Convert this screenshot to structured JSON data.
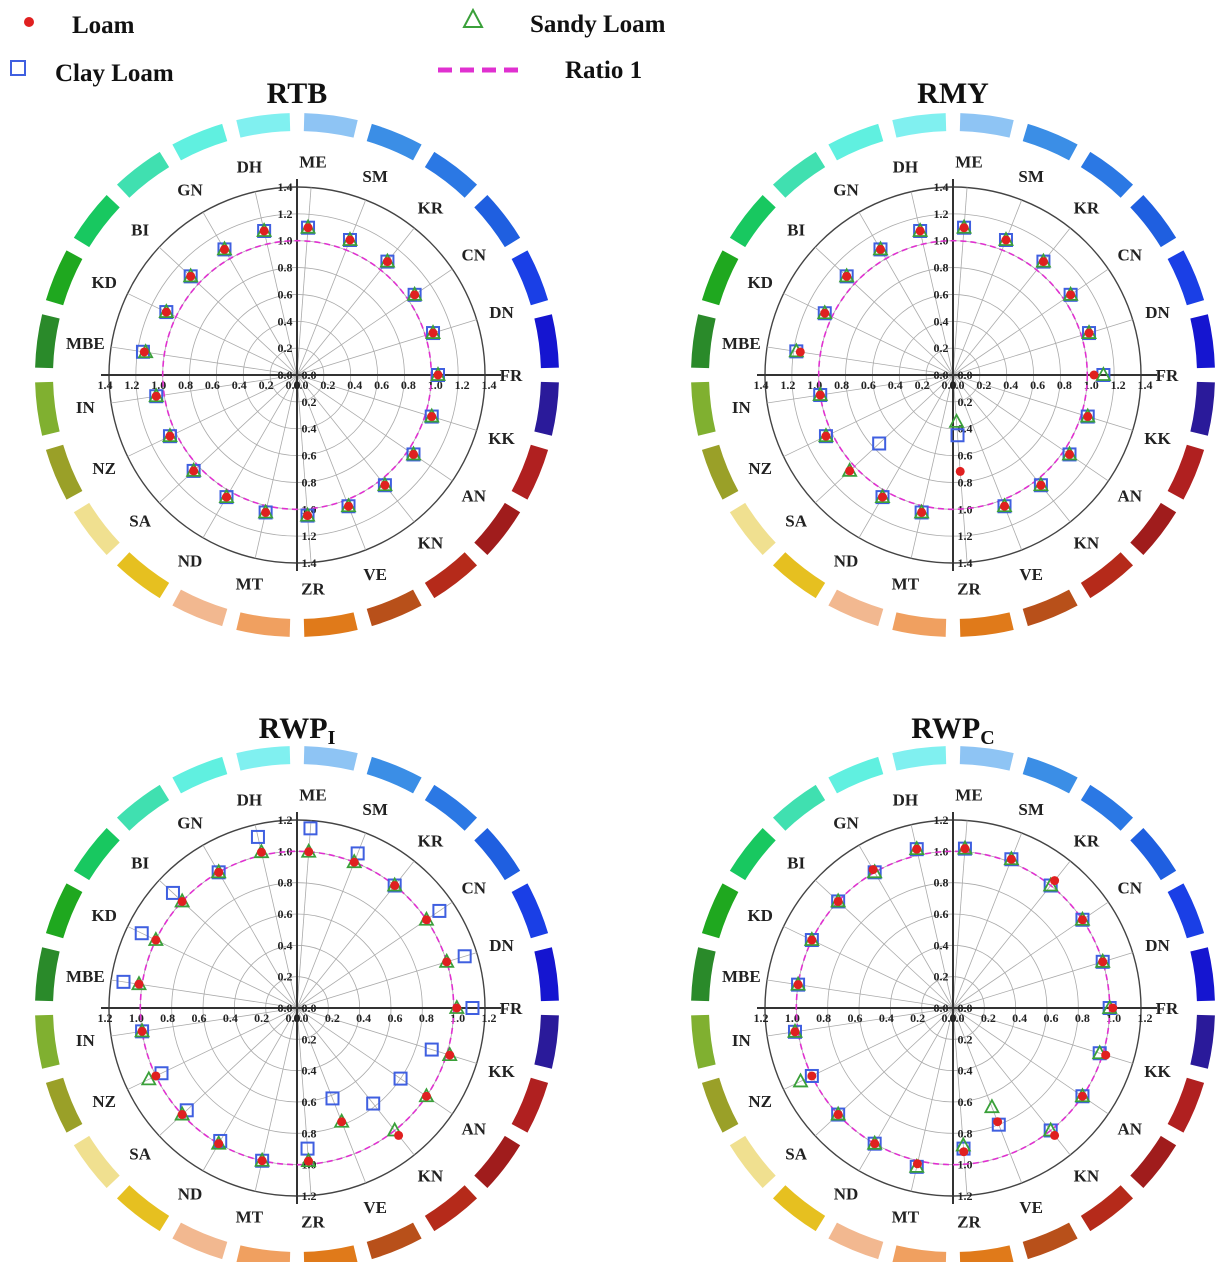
{
  "legend": {
    "loam": "Loam",
    "sandy_loam": "Sandy Loam",
    "clay_loam": "Clay Loam",
    "ratio": "Ratio 1"
  },
  "colors": {
    "loam": "#e02020",
    "sandy_loam": "#3aa03a",
    "clay_loam": "#3f5fe0",
    "ratio": "#e030d0"
  },
  "chart_data": [
    {
      "type": "scatter",
      "subtype": "polar",
      "title": "RTB",
      "rmax": 1.4,
      "ticks": [
        "0.0",
        "0.2",
        "0.4",
        "0.6",
        "0.8",
        "1.0",
        "1.2",
        "1.4"
      ],
      "categories": [
        "FR",
        "KK",
        "AN",
        "KN",
        "VE",
        "ZR",
        "MT",
        "ND",
        "SA",
        "NZ",
        "IN",
        "MBE",
        "KD",
        "BI",
        "GN",
        "DH",
        "ME",
        "SM",
        "KR",
        "CN",
        "DN"
      ],
      "series": [
        {
          "name": "Loam",
          "values": [
            1.05,
            1.05,
            1.05,
            1.05,
            1.05,
            1.05,
            1.05,
            1.05,
            1.05,
            1.05,
            1.06,
            1.15,
            1.08,
            1.08,
            1.08,
            1.1,
            1.1,
            1.08,
            1.08,
            1.06,
            1.06
          ]
        },
        {
          "name": "Sandy Loam",
          "values": [
            1.05,
            1.05,
            1.05,
            1.05,
            1.05,
            1.05,
            1.05,
            1.05,
            1.05,
            1.05,
            1.06,
            1.14,
            1.08,
            1.08,
            1.08,
            1.1,
            1.1,
            1.08,
            1.08,
            1.06,
            1.06
          ]
        },
        {
          "name": "Clay Loam",
          "values": [
            1.05,
            1.05,
            1.05,
            1.05,
            1.05,
            1.05,
            1.05,
            1.05,
            1.05,
            1.05,
            1.06,
            1.16,
            1.08,
            1.08,
            1.08,
            1.1,
            1.1,
            1.08,
            1.08,
            1.06,
            1.06
          ]
        }
      ]
    },
    {
      "type": "scatter",
      "subtype": "polar",
      "title": "RMY",
      "rmax": 1.4,
      "ticks": [
        "0.0",
        "0.2",
        "0.4",
        "0.6",
        "0.8",
        "1.0",
        "1.2",
        "1.4"
      ],
      "categories": [
        "FR",
        "KK",
        "AN",
        "KN",
        "VE",
        "ZR",
        "MT",
        "ND",
        "SA",
        "NZ",
        "IN",
        "MBE",
        "KD",
        "BI",
        "GN",
        "DH",
        "ME",
        "SM",
        "KR",
        "CN",
        "DN"
      ],
      "series": [
        {
          "name": "Loam",
          "values": [
            1.05,
            1.05,
            1.05,
            1.05,
            1.05,
            0.72,
            1.05,
            1.05,
            1.05,
            1.05,
            1.0,
            1.15,
            1.06,
            1.08,
            1.08,
            1.1,
            1.1,
            1.08,
            1.08,
            1.06,
            1.06
          ]
        },
        {
          "name": "Sandy Loam",
          "values": [
            1.12,
            1.05,
            1.05,
            1.05,
            1.05,
            0.35,
            1.05,
            1.05,
            1.05,
            1.05,
            1.0,
            1.18,
            1.06,
            1.08,
            1.08,
            1.1,
            1.1,
            1.08,
            1.08,
            1.06,
            1.06
          ]
        },
        {
          "name": "Clay Loam",
          "values": [
            1.12,
            1.05,
            1.05,
            1.05,
            1.05,
            0.45,
            1.05,
            1.05,
            0.75,
            1.05,
            1.0,
            1.18,
            1.06,
            1.08,
            1.08,
            1.1,
            1.1,
            1.08,
            1.08,
            1.06,
            1.06
          ]
        }
      ]
    },
    {
      "type": "scatter",
      "subtype": "polar",
      "title": "RWPI",
      "title_main": "RWP",
      "title_sub": "I",
      "rmax": 1.2,
      "ticks": [
        "0.0",
        "0.2",
        "0.4",
        "0.6",
        "0.8",
        "1.0",
        "1.2"
      ],
      "categories": [
        "FR",
        "KK",
        "AN",
        "KN",
        "VE",
        "ZR",
        "MT",
        "ND",
        "SA",
        "NZ",
        "IN",
        "MBE",
        "KD",
        "BI",
        "GN",
        "DH",
        "ME",
        "SM",
        "KR",
        "CN",
        "DN"
      ],
      "series": [
        {
          "name": "Loam",
          "values": [
            1.02,
            1.02,
            1.0,
            1.04,
            0.78,
            0.98,
            1.0,
            1.0,
            1.0,
            1.0,
            1.0,
            1.02,
            1.0,
            1.0,
            1.0,
            1.02,
            1.0,
            1.0,
            1.0,
            1.0,
            1.0
          ]
        },
        {
          "name": "Sandy Loam",
          "values": [
            1.02,
            1.02,
            1.0,
            1.0,
            0.78,
            0.98,
            1.0,
            1.0,
            1.0,
            1.05,
            1.0,
            1.02,
            1.0,
            1.0,
            1.0,
            1.02,
            1.0,
            1.0,
            1.0,
            1.0,
            1.0
          ]
        },
        {
          "name": "Clay Loam",
          "values": [
            1.12,
            0.9,
            0.8,
            0.78,
            0.62,
            0.9,
            1.0,
            0.98,
            0.96,
            0.96,
            1.0,
            1.12,
            1.1,
            1.08,
            1.0,
            1.12,
            1.15,
            1.06,
            1.0,
            1.1,
            1.12
          ]
        }
      ]
    },
    {
      "type": "scatter",
      "subtype": "polar",
      "title": "RWPC",
      "title_main": "RWP",
      "title_sub": "C",
      "rmax": 1.2,
      "ticks": [
        "0.0",
        "0.2",
        "0.4",
        "0.6",
        "0.8",
        "1.0",
        "1.2"
      ],
      "categories": [
        "FR",
        "KK",
        "AN",
        "KN",
        "VE",
        "ZR",
        "MT",
        "ND",
        "SA",
        "NZ",
        "IN",
        "MBE",
        "KD",
        "BI",
        "GN",
        "DH",
        "ME",
        "SM",
        "KR",
        "CN",
        "DN"
      ],
      "series": [
        {
          "name": "Loam",
          "values": [
            1.02,
            1.02,
            1.0,
            1.04,
            0.78,
            0.92,
            1.02,
            1.0,
            1.0,
            1.0,
            1.02,
            1.0,
            1.0,
            1.0,
            1.02,
            1.04,
            1.02,
            1.02,
            1.04,
            1.0,
            1.0
          ]
        },
        {
          "name": "Sandy Loam",
          "values": [
            1.0,
            0.98,
            1.0,
            1.0,
            0.68,
            0.88,
            1.04,
            1.0,
            1.0,
            1.08,
            1.02,
            1.0,
            1.0,
            1.0,
            1.0,
            1.04,
            1.02,
            1.02,
            1.0,
            1.0,
            1.0
          ]
        },
        {
          "name": "Clay Loam",
          "values": [
            1.0,
            0.98,
            1.0,
            1.0,
            0.8,
            0.9,
            1.04,
            1.0,
            1.0,
            1.0,
            1.02,
            1.0,
            1.0,
            1.0,
            1.0,
            1.04,
            1.02,
            1.02,
            1.0,
            1.0,
            1.0
          ]
        }
      ]
    }
  ]
}
